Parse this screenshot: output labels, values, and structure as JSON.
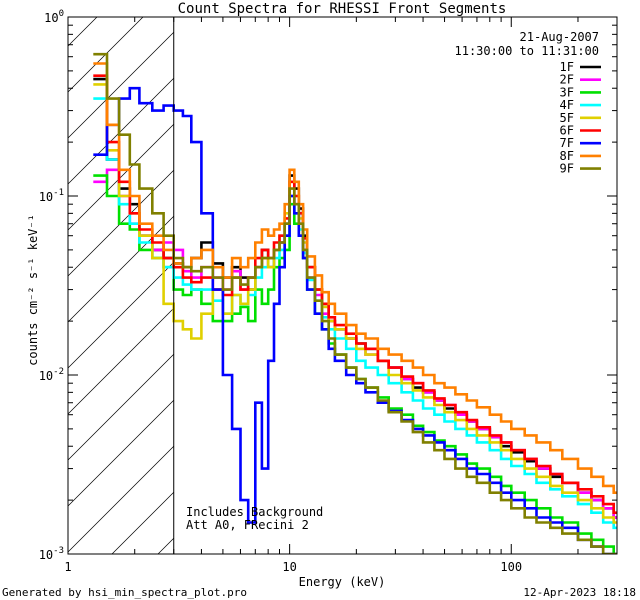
{
  "chart_data": {
    "type": "line",
    "title": "Count Spectra for RHESSI Front Segments",
    "xlabel": "Energy (keV)",
    "ylabel": "counts cm⁻² s⁻¹ keV⁻¹",
    "xscale": "log",
    "yscale": "log",
    "xlim": [
      1,
      300
    ],
    "ylim": [
      0.001,
      1
    ],
    "x_ticks": [
      {
        "value": 1,
        "label": "1"
      },
      {
        "value": 10,
        "label": "10"
      },
      {
        "value": 100,
        "label": "100"
      }
    ],
    "y_ticks": [
      {
        "value": 1,
        "base": "10",
        "exp": "0"
      },
      {
        "value": 0.1,
        "base": "10",
        "exp": "-1"
      },
      {
        "value": 0.01,
        "base": "10",
        "exp": "-2"
      },
      {
        "value": 0.001,
        "base": "10",
        "exp": "-3"
      }
    ],
    "date_label": "21-Aug-2007",
    "time_range_label": "11:30:00 to 11:31:00",
    "shaded_region_below_keV": 3,
    "annotations": [
      "Includes Background",
      "Att A0, FRecini 2"
    ],
    "series": [
      {
        "name": "1F",
        "color": "#000000",
        "x": [
          1.3,
          1.5,
          1.7,
          1.9,
          2.1,
          2.4,
          2.7,
          3.0,
          3.3,
          3.6,
          4.0,
          4.5,
          5.0,
          5.5,
          6.0,
          6.5,
          7.0,
          7.5,
          8.0,
          8.5,
          9.0,
          9.5,
          10.0,
          10.5,
          11.0,
          11.5,
          12.0,
          13.0,
          14.0,
          15.0,
          16.0,
          18.0,
          20.0,
          22.0,
          25.0,
          28.0,
          32.0,
          36.0,
          40.0,
          45.0,
          50.0,
          56.0,
          63.0,
          70.0,
          80.0,
          90.0,
          100.0,
          115.0,
          130.0,
          150.0,
          170.0,
          200.0,
          230.0,
          260.0,
          290.0
        ],
        "values": [
          0.45,
          0.16,
          0.11,
          0.09,
          0.06,
          0.05,
          0.045,
          0.042,
          0.04,
          0.045,
          0.055,
          0.042,
          0.035,
          0.04,
          0.035,
          0.03,
          0.04,
          0.05,
          0.04,
          0.05,
          0.055,
          0.07,
          0.13,
          0.11,
          0.085,
          0.06,
          0.04,
          0.03,
          0.025,
          0.02,
          0.018,
          0.016,
          0.015,
          0.014,
          0.012,
          0.011,
          0.0095,
          0.0085,
          0.008,
          0.0072,
          0.0065,
          0.006,
          0.0055,
          0.005,
          0.0045,
          0.004,
          0.0037,
          0.0033,
          0.003,
          0.0027,
          0.0025,
          0.0022,
          0.002,
          0.0018,
          0.0016
        ]
      },
      {
        "name": "2F",
        "color": "#ff00ff",
        "x": [
          1.3,
          1.5,
          1.7,
          1.9,
          2.1,
          2.4,
          2.7,
          3.0,
          3.3,
          3.6,
          4.0,
          4.5,
          5.0,
          5.5,
          6.0,
          6.5,
          7.0,
          7.5,
          8.0,
          8.5,
          9.0,
          9.5,
          10.0,
          10.5,
          11.0,
          11.5,
          12.0,
          13.0,
          14.0,
          15.0,
          16.0,
          18.0,
          20.0,
          22.0,
          25.0,
          28.0,
          32.0,
          36.0,
          40.0,
          45.0,
          50.0,
          56.0,
          63.0,
          70.0,
          80.0,
          90.0,
          100.0,
          115.0,
          130.0,
          150.0,
          170.0,
          200.0,
          230.0,
          260.0,
          290.0
        ],
        "values": [
          0.12,
          0.14,
          0.1,
          0.07,
          0.06,
          0.05,
          0.055,
          0.05,
          0.038,
          0.035,
          0.04,
          0.035,
          0.03,
          0.038,
          0.03,
          0.035,
          0.04,
          0.045,
          0.04,
          0.05,
          0.055,
          0.06,
          0.1,
          0.09,
          0.07,
          0.05,
          0.035,
          0.028,
          0.022,
          0.02,
          0.018,
          0.016,
          0.014,
          0.013,
          0.012,
          0.011,
          0.0095,
          0.009,
          0.008,
          0.0072,
          0.0068,
          0.006,
          0.0055,
          0.005,
          0.0045,
          0.0042,
          0.0038,
          0.0034,
          0.003,
          0.0028,
          0.0025,
          0.0022,
          0.002,
          0.0018,
          0.0016
        ]
      },
      {
        "name": "3F",
        "color": "#00e000",
        "x": [
          1.3,
          1.5,
          1.7,
          1.9,
          2.1,
          2.4,
          2.7,
          3.0,
          3.3,
          3.6,
          4.0,
          4.5,
          5.0,
          5.5,
          6.0,
          6.5,
          7.0,
          7.5,
          8.0,
          8.5,
          9.0,
          9.5,
          10.0,
          10.5,
          11.0,
          11.5,
          12.0,
          13.0,
          14.0,
          15.0,
          16.0,
          18.0,
          20.0,
          22.0,
          25.0,
          28.0,
          32.0,
          36.0,
          40.0,
          45.0,
          50.0,
          56.0,
          63.0,
          70.0,
          80.0,
          90.0,
          100.0,
          115.0,
          130.0,
          150.0,
          170.0,
          200.0,
          230.0,
          260.0,
          290.0
        ],
        "values": [
          0.13,
          0.1,
          0.07,
          0.065,
          0.05,
          0.045,
          0.04,
          0.03,
          0.028,
          0.03,
          0.025,
          0.02,
          0.02,
          0.022,
          0.024,
          0.02,
          0.03,
          0.025,
          0.03,
          0.04,
          0.045,
          0.05,
          0.09,
          0.07,
          0.06,
          0.045,
          0.03,
          0.022,
          0.018,
          0.015,
          0.013,
          0.011,
          0.0095,
          0.0085,
          0.0075,
          0.0065,
          0.006,
          0.0052,
          0.0048,
          0.0043,
          0.004,
          0.0036,
          0.0032,
          0.003,
          0.0027,
          0.0024,
          0.0022,
          0.002,
          0.0018,
          0.0016,
          0.0015,
          0.0013,
          0.0012,
          0.0011,
          0.001
        ]
      },
      {
        "name": "4F",
        "color": "#00ffff",
        "x": [
          1.3,
          1.5,
          1.7,
          1.9,
          2.1,
          2.4,
          2.7,
          3.0,
          3.3,
          3.6,
          4.0,
          4.5,
          5.0,
          5.5,
          6.0,
          6.5,
          7.0,
          7.5,
          8.0,
          8.5,
          9.0,
          9.5,
          10.0,
          10.5,
          11.0,
          11.5,
          12.0,
          13.0,
          14.0,
          15.0,
          16.0,
          18.0,
          20.0,
          22.0,
          25.0,
          28.0,
          32.0,
          36.0,
          40.0,
          45.0,
          50.0,
          56.0,
          63.0,
          70.0,
          80.0,
          90.0,
          100.0,
          115.0,
          130.0,
          150.0,
          170.0,
          200.0,
          230.0,
          260.0,
          290.0
        ],
        "values": [
          0.35,
          0.16,
          0.09,
          0.07,
          0.055,
          0.045,
          0.04,
          0.035,
          0.032,
          0.03,
          0.03,
          0.026,
          0.022,
          0.028,
          0.025,
          0.028,
          0.035,
          0.04,
          0.04,
          0.045,
          0.05,
          0.06,
          0.1,
          0.08,
          0.065,
          0.048,
          0.034,
          0.026,
          0.021,
          0.018,
          0.016,
          0.014,
          0.012,
          0.011,
          0.01,
          0.009,
          0.008,
          0.0072,
          0.0065,
          0.006,
          0.0055,
          0.005,
          0.0046,
          0.0042,
          0.0038,
          0.0034,
          0.0031,
          0.0028,
          0.0025,
          0.0023,
          0.0021,
          0.0019,
          0.0017,
          0.0015,
          0.0014
        ]
      },
      {
        "name": "5F",
        "color": "#e0d000",
        "x": [
          1.3,
          1.5,
          1.7,
          1.9,
          2.1,
          2.4,
          2.7,
          3.0,
          3.3,
          3.6,
          4.0,
          4.5,
          5.0,
          5.5,
          6.0,
          6.5,
          7.0,
          7.5,
          8.0,
          8.5,
          9.0,
          9.5,
          10.0,
          10.5,
          11.0,
          11.5,
          12.0,
          13.0,
          14.0,
          15.0,
          16.0,
          18.0,
          20.0,
          22.0,
          25.0,
          28.0,
          32.0,
          36.0,
          40.0,
          45.0,
          50.0,
          56.0,
          63.0,
          70.0,
          80.0,
          90.0,
          100.0,
          115.0,
          130.0,
          150.0,
          170.0,
          200.0,
          230.0,
          260.0,
          290.0
        ],
        "values": [
          0.42,
          0.18,
          0.1,
          0.08,
          0.06,
          0.045,
          0.025,
          0.02,
          0.018,
          0.016,
          0.022,
          0.03,
          0.022,
          0.028,
          0.025,
          0.03,
          0.04,
          0.045,
          0.04,
          0.05,
          0.06,
          0.08,
          0.12,
          0.1,
          0.075,
          0.055,
          0.04,
          0.03,
          0.024,
          0.02,
          0.018,
          0.016,
          0.014,
          0.013,
          0.012,
          0.01,
          0.009,
          0.0082,
          0.0075,
          0.0068,
          0.0062,
          0.0056,
          0.005,
          0.0046,
          0.0042,
          0.0038,
          0.0034,
          0.003,
          0.0027,
          0.0024,
          0.0022,
          0.002,
          0.0018,
          0.0016,
          0.0015
        ]
      },
      {
        "name": "6F",
        "color": "#ff0000",
        "x": [
          1.3,
          1.5,
          1.7,
          1.9,
          2.1,
          2.4,
          2.7,
          3.0,
          3.3,
          3.6,
          4.0,
          4.5,
          5.0,
          5.5,
          6.0,
          6.5,
          7.0,
          7.5,
          8.0,
          8.5,
          9.0,
          9.5,
          10.0,
          10.5,
          11.0,
          11.5,
          12.0,
          13.0,
          14.0,
          15.0,
          16.0,
          18.0,
          20.0,
          22.0,
          25.0,
          28.0,
          32.0,
          36.0,
          40.0,
          45.0,
          50.0,
          56.0,
          63.0,
          70.0,
          80.0,
          90.0,
          100.0,
          115.0,
          130.0,
          150.0,
          170.0,
          200.0,
          230.0,
          260.0,
          290.0
        ],
        "values": [
          0.47,
          0.2,
          0.12,
          0.08,
          0.065,
          0.055,
          0.045,
          0.04,
          0.035,
          0.033,
          0.035,
          0.03,
          0.028,
          0.035,
          0.03,
          0.035,
          0.045,
          0.05,
          0.045,
          0.055,
          0.06,
          0.075,
          0.12,
          0.1,
          0.08,
          0.058,
          0.04,
          0.03,
          0.025,
          0.021,
          0.019,
          0.017,
          0.015,
          0.014,
          0.012,
          0.011,
          0.0098,
          0.009,
          0.0082,
          0.0074,
          0.0068,
          0.0062,
          0.0056,
          0.0051,
          0.0046,
          0.0042,
          0.0038,
          0.0034,
          0.0031,
          0.0028,
          0.0025,
          0.0023,
          0.0021,
          0.0019,
          0.0017
        ]
      },
      {
        "name": "7F",
        "color": "#0000ff",
        "x": [
          1.3,
          1.5,
          1.7,
          1.9,
          2.1,
          2.4,
          2.7,
          3.0,
          3.3,
          3.6,
          4.0,
          4.5,
          5.0,
          5.5,
          6.0,
          6.5,
          7.0,
          7.5,
          8.0,
          8.5,
          9.0,
          9.5,
          10.0,
          10.5,
          11.0,
          11.5,
          12.0,
          13.0,
          14.0,
          15.0,
          16.0,
          18.0,
          20.0,
          22.0,
          25.0,
          28.0,
          32.0,
          36.0,
          40.0,
          45.0,
          50.0,
          56.0,
          63.0,
          70.0,
          80.0,
          90.0,
          100.0,
          115.0,
          130.0,
          150.0,
          170.0,
          200.0,
          230.0,
          260.0,
          290.0
        ],
        "values": [
          0.17,
          0.25,
          0.35,
          0.4,
          0.33,
          0.3,
          0.32,
          0.3,
          0.28,
          0.2,
          0.08,
          0.03,
          0.01,
          0.005,
          0.002,
          0.0015,
          0.007,
          0.003,
          0.012,
          0.025,
          0.04,
          0.06,
          0.1,
          0.08,
          0.06,
          0.045,
          0.03,
          0.022,
          0.018,
          0.014,
          0.012,
          0.01,
          0.009,
          0.008,
          0.007,
          0.0063,
          0.0056,
          0.005,
          0.0046,
          0.0042,
          0.0038,
          0.0034,
          0.003,
          0.0028,
          0.0025,
          0.0022,
          0.002,
          0.0018,
          0.0016,
          0.0015,
          0.0014,
          0.0012,
          0.0011,
          0.001,
          0.001
        ]
      },
      {
        "name": "8F",
        "color": "#ff8000",
        "x": [
          1.3,
          1.5,
          1.7,
          1.9,
          2.1,
          2.4,
          2.7,
          3.0,
          3.3,
          3.6,
          4.0,
          4.5,
          5.0,
          5.5,
          6.0,
          6.5,
          7.0,
          7.5,
          8.0,
          8.5,
          9.0,
          9.5,
          10.0,
          10.5,
          11.0,
          11.5,
          12.0,
          13.0,
          14.0,
          15.0,
          16.0,
          18.0,
          20.0,
          22.0,
          25.0,
          28.0,
          32.0,
          36.0,
          40.0,
          45.0,
          50.0,
          56.0,
          63.0,
          70.0,
          80.0,
          90.0,
          100.0,
          115.0,
          130.0,
          150.0,
          170.0,
          200.0,
          230.0,
          260.0,
          290.0
        ],
        "values": [
          0.55,
          0.25,
          0.14,
          0.1,
          0.07,
          0.06,
          0.05,
          0.042,
          0.04,
          0.045,
          0.05,
          0.04,
          0.035,
          0.045,
          0.04,
          0.045,
          0.055,
          0.065,
          0.06,
          0.065,
          0.07,
          0.09,
          0.14,
          0.12,
          0.09,
          0.065,
          0.046,
          0.036,
          0.029,
          0.025,
          0.022,
          0.019,
          0.017,
          0.016,
          0.014,
          0.013,
          0.012,
          0.011,
          0.01,
          0.009,
          0.0085,
          0.0078,
          0.0072,
          0.0066,
          0.006,
          0.0055,
          0.005,
          0.0046,
          0.0042,
          0.0038,
          0.0034,
          0.003,
          0.0027,
          0.0024,
          0.0022
        ]
      },
      {
        "name": "9F",
        "color": "#808000",
        "x": [
          1.3,
          1.5,
          1.7,
          1.9,
          2.1,
          2.4,
          2.7,
          3.0,
          3.3,
          3.6,
          4.0,
          4.5,
          5.0,
          5.5,
          6.0,
          6.5,
          7.0,
          7.5,
          8.0,
          8.5,
          9.0,
          9.5,
          10.0,
          10.5,
          11.0,
          11.5,
          12.0,
          13.0,
          14.0,
          15.0,
          16.0,
          18.0,
          20.0,
          22.0,
          25.0,
          28.0,
          32.0,
          36.0,
          40.0,
          45.0,
          50.0,
          56.0,
          63.0,
          70.0,
          80.0,
          90.0,
          100.0,
          115.0,
          130.0,
          150.0,
          170.0,
          200.0,
          230.0,
          260.0,
          290.0
        ],
        "values": [
          0.62,
          0.35,
          0.22,
          0.15,
          0.11,
          0.08,
          0.06,
          0.045,
          0.04,
          0.038,
          0.04,
          0.035,
          0.03,
          0.035,
          0.032,
          0.035,
          0.04,
          0.045,
          0.045,
          0.05,
          0.055,
          0.07,
          0.11,
          0.09,
          0.07,
          0.05,
          0.035,
          0.026,
          0.02,
          0.016,
          0.013,
          0.011,
          0.0095,
          0.0085,
          0.0072,
          0.0062,
          0.0055,
          0.0048,
          0.0042,
          0.0038,
          0.0034,
          0.003,
          0.0027,
          0.0025,
          0.0022,
          0.002,
          0.0018,
          0.0016,
          0.0015,
          0.0014,
          0.0013,
          0.0012,
          0.0011,
          0.001,
          0.001
        ]
      }
    ]
  },
  "footer": {
    "generated_by": "Generated by hsi_min_spectra_plot.pro",
    "timestamp": "12-Apr-2023 18:18"
  }
}
